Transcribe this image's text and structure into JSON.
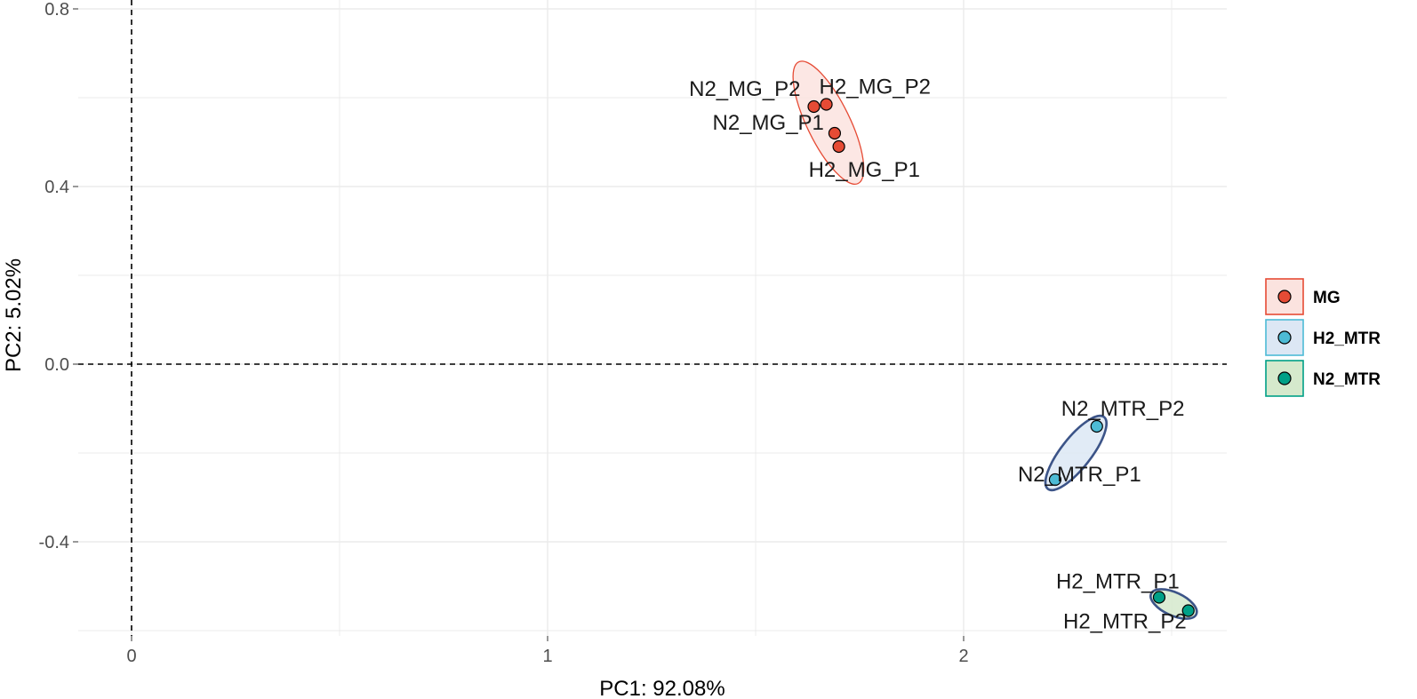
{
  "chart_data": {
    "type": "scatter",
    "xlabel": "PC1: 92.08%",
    "ylabel": "PC2: 5.02%",
    "xlim": [
      -0.13,
      2.68
    ],
    "ylim": [
      -0.61,
      0.81
    ],
    "xticks": [
      0,
      1,
      2
    ],
    "yticks": [
      -0.4,
      0.0,
      0.4,
      0.8
    ],
    "x_tick_labels": [
      "0",
      "1",
      "2"
    ],
    "y_tick_labels": [
      "-0.4",
      "0.0",
      "0.4",
      "0.8"
    ],
    "grid": true,
    "reference_lines": [
      "x = 0 (dashed)",
      "y = 0 (dashed)"
    ],
    "legend_position": "right",
    "series": [
      {
        "name": "MG",
        "color": "#E64B35",
        "fill": "#FBE3DF",
        "ellipse_stroke": "#E64B35",
        "points": [
          {
            "x": 1.64,
            "y": 0.58,
            "label": "N2_MG_P2"
          },
          {
            "x": 1.67,
            "y": 0.585,
            "label": "H2_MG_P2"
          },
          {
            "x": 1.69,
            "y": 0.52,
            "label": "N2_MG_P1"
          },
          {
            "x": 1.7,
            "y": 0.49,
            "label": "H2_MG_P1"
          }
        ]
      },
      {
        "name": "H2_MTR",
        "color": "#4DBBD5",
        "fill": "#DCE7F4",
        "ellipse_stroke": "#3C5488",
        "points": [
          {
            "x": 2.32,
            "y": -0.14,
            "label": "N2_MTR_P2"
          },
          {
            "x": 2.22,
            "y": -0.26,
            "label": "N2_MTR_P1"
          }
        ]
      },
      {
        "name": "N2_MTR",
        "color": "#00A087",
        "fill": "#D5E9CC",
        "ellipse_stroke": "#3C5488",
        "points": [
          {
            "x": 2.47,
            "y": -0.525,
            "label": "H2_MTR_P1"
          },
          {
            "x": 2.54,
            "y": -0.555,
            "label": "H2_MTR_P2"
          }
        ]
      }
    ]
  }
}
